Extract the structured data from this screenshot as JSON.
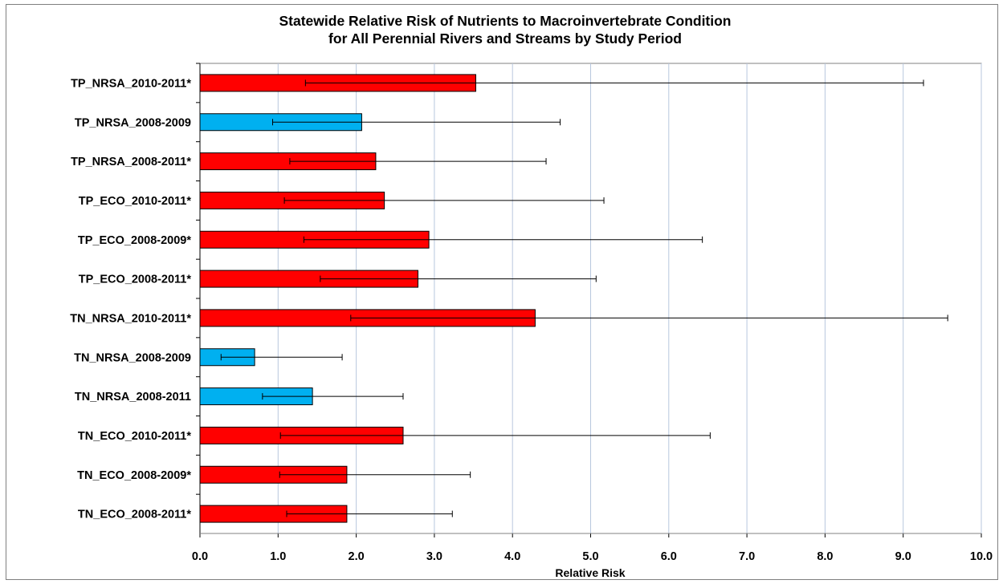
{
  "chart_data": {
    "type": "bar",
    "orientation": "horizontal",
    "title": "Statewide Relative Risk of Nutrients to Macroinvertebrate Condition",
    "subtitle": "for All Perennial Rivers and Streams by Study Period",
    "xlabel": "Relative Risk",
    "ylabel": "",
    "xlim": [
      0,
      10
    ],
    "x_ticks": [
      "0.0",
      "1.0",
      "2.0",
      "3.0",
      "4.0",
      "5.0",
      "6.0",
      "7.0",
      "8.0",
      "9.0",
      "10.0"
    ],
    "grid": "vertical",
    "legend": "none",
    "colors": {
      "significant": "#ff0000",
      "not_significant": "#00b0f0",
      "grid": "#b8c7de",
      "error_bar": "#000000"
    },
    "categories": [
      "TP_NRSA_2010-2011*",
      "TP_NRSA_2008-2009",
      "TP_NRSA_2008-2011*",
      "TP_ECO_2010-2011*",
      "TP_ECO_2008-2009*",
      "TP_ECO_2008-2011*",
      "TN_NRSA_2010-2011*",
      "TN_NRSA_2008-2009",
      "TN_NRSA_2008-2011",
      "TN_ECO_2010-2011*",
      "TN_ECO_2008-2009*",
      "TN_ECO_2008-2011*"
    ],
    "values": [
      3.53,
      2.07,
      2.25,
      2.36,
      2.93,
      2.79,
      4.29,
      0.7,
      1.44,
      2.6,
      1.88,
      1.88
    ],
    "ci_lower": [
      1.35,
      0.93,
      1.15,
      1.08,
      1.33,
      1.54,
      1.93,
      0.27,
      0.8,
      1.03,
      1.02,
      1.11
    ],
    "ci_upper": [
      9.26,
      4.61,
      4.43,
      5.17,
      6.43,
      5.07,
      9.57,
      1.82,
      2.6,
      6.53,
      3.46,
      3.23
    ],
    "significant": [
      true,
      false,
      true,
      true,
      true,
      true,
      true,
      false,
      false,
      true,
      true,
      true
    ]
  }
}
